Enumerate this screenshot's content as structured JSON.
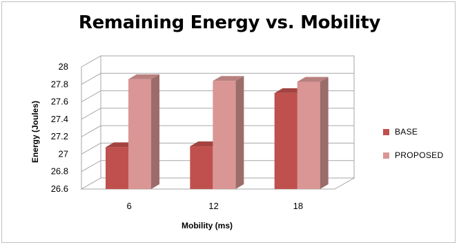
{
  "chart_data": {
    "type": "bar",
    "title": "Remaining Energy vs. Mobility",
    "xlabel": "Mobility  (ms)",
    "ylabel": "Energy (Joules)",
    "categories": [
      "6",
      "12",
      "18"
    ],
    "ylim": [
      26.6,
      28
    ],
    "yticks": [
      "26.6",
      "26.8",
      "27",
      "27.2",
      "27.4",
      "27.6",
      "27.8",
      "28"
    ],
    "grid": true,
    "legend_position": "right",
    "series": [
      {
        "name": "BASE",
        "values": [
          27.08,
          27.09,
          27.7
        ],
        "color": "#c0504d"
      },
      {
        "name": "PROPOSED",
        "values": [
          27.86,
          27.84,
          27.83
        ],
        "color": "#d99694"
      }
    ]
  }
}
